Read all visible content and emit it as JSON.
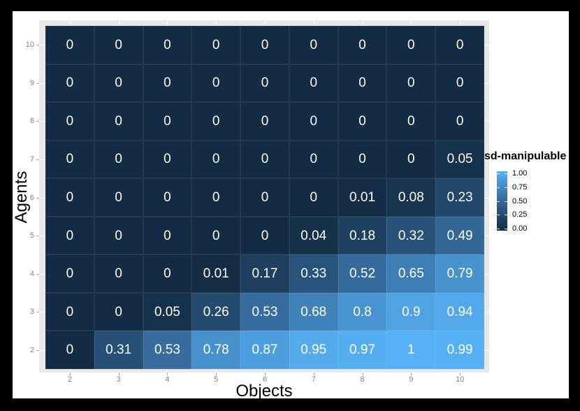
{
  "chart_data": {
    "type": "heatmap",
    "title": "",
    "xlabel": "Objects",
    "ylabel": "Agents",
    "x_categories": [
      2,
      3,
      4,
      5,
      6,
      7,
      8,
      9,
      10
    ],
    "y_categories": [
      10,
      9,
      8,
      7,
      6,
      5,
      4,
      3,
      2
    ],
    "value_range": [
      0,
      1
    ],
    "rows": [
      {
        "agents": 10,
        "values": [
          0,
          0,
          0,
          0,
          0,
          0,
          0,
          0,
          0
        ]
      },
      {
        "agents": 9,
        "values": [
          0,
          0,
          0,
          0,
          0,
          0,
          0,
          0,
          0
        ]
      },
      {
        "agents": 8,
        "values": [
          0,
          0,
          0,
          0,
          0,
          0,
          0,
          0,
          0
        ]
      },
      {
        "agents": 7,
        "values": [
          0,
          0,
          0,
          0,
          0,
          0,
          0,
          0,
          0.05
        ]
      },
      {
        "agents": 6,
        "values": [
          0,
          0,
          0,
          0,
          0,
          0,
          0.01,
          0.08,
          0.23
        ]
      },
      {
        "agents": 5,
        "values": [
          0,
          0,
          0,
          0,
          0,
          0.04,
          0.18,
          0.32,
          0.49
        ]
      },
      {
        "agents": 4,
        "values": [
          0,
          0,
          0,
          0.01,
          0.17,
          0.33,
          0.52,
          0.65,
          0.79
        ]
      },
      {
        "agents": 3,
        "values": [
          0,
          0,
          0.05,
          0.26,
          0.53,
          0.68,
          0.8,
          0.9,
          0.94
        ]
      },
      {
        "agents": 2,
        "values": [
          0,
          0.31,
          0.53,
          0.78,
          0.87,
          0.95,
          0.97,
          1,
          0.99
        ]
      }
    ],
    "legend": {
      "title": "sd-manipulable",
      "tick_labels": [
        "1.00",
        "0.75",
        "0.50",
        "0.25",
        "0.00"
      ],
      "tick_values": [
        1,
        0.75,
        0.5,
        0.25,
        0
      ]
    },
    "gradient_stops": [
      {
        "t": 0,
        "color": "#132B43"
      },
      {
        "t": 0.25,
        "color": "#23496C"
      },
      {
        "t": 0.5,
        "color": "#346898"
      },
      {
        "t": 0.75,
        "color": "#458DC6"
      },
      {
        "t": 1,
        "color": "#56B1F7"
      }
    ],
    "colors": {
      "outer_background": "#000000",
      "figure_background": "#FFFFFF",
      "panel_background": "#E8E8E8",
      "cell_text": "#FFFFFF",
      "tick_label": "#818181",
      "axis_title": "#000000",
      "gridline": "#FFFFFF"
    }
  }
}
